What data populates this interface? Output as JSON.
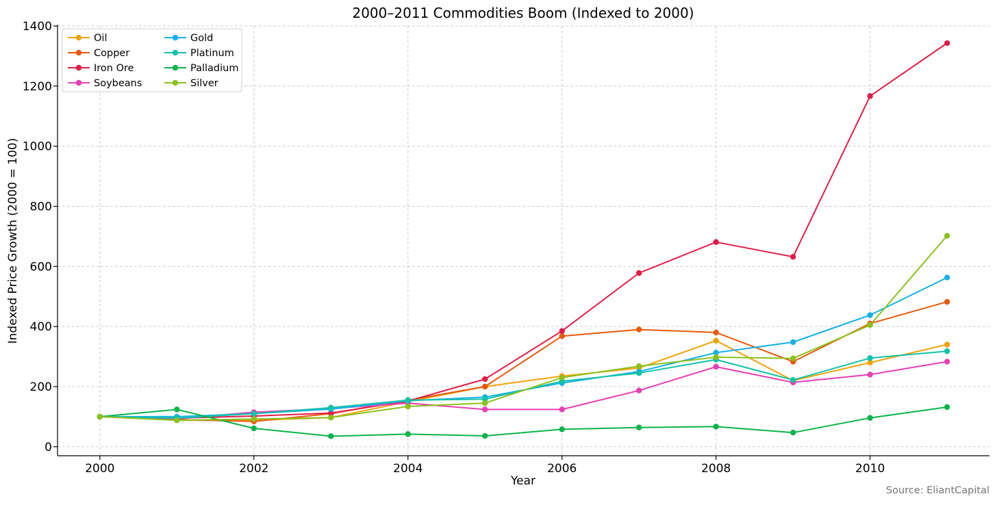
{
  "chart_data": {
    "type": "line",
    "title": "2000–2011 Commodities Boom (Indexed to 2000)",
    "xlabel": "Year",
    "ylabel": "Indexed Price Growth (2000 = 100)",
    "source": "Source: EliantCapital",
    "xlim": [
      1999.45,
      2011.55
    ],
    "ylim": [
      -30,
      1400
    ],
    "x": [
      2000,
      2001,
      2002,
      2003,
      2004,
      2005,
      2006,
      2007,
      2008,
      2009,
      2010,
      2011
    ],
    "xticks": [
      2000,
      2002,
      2004,
      2006,
      2008,
      2010
    ],
    "xtick_labels": [
      "2000",
      "2002",
      "2004",
      "2006",
      "2008",
      "2010"
    ],
    "yticks": [
      0,
      200,
      400,
      600,
      800,
      1000,
      1200,
      1400
    ],
    "ytick_labels": [
      "0",
      "200",
      "400",
      "600",
      "800",
      "1000",
      "1200",
      "1400"
    ],
    "grid": true,
    "legend_position": "top-left",
    "series": [
      {
        "name": "Oil",
        "color": "#f0a30a",
        "values": [
          100,
          88,
          88,
          97,
          150,
          200,
          235,
          262,
          353,
          220,
          280,
          340
        ]
      },
      {
        "name": "Copper",
        "color": "#e8590c",
        "values": [
          100,
          90,
          84,
          110,
          155,
          200,
          368,
          390,
          380,
          283,
          410,
          482
        ]
      },
      {
        "name": "Iron Ore",
        "color": "#e11d48",
        "values": [
          100,
          95,
          102,
          112,
          152,
          225,
          385,
          578,
          681,
          632,
          1167,
          1343
        ]
      },
      {
        "name": "Soybeans",
        "color": "#e83fb4",
        "values": [
          100,
          92,
          115,
          127,
          145,
          124,
          124,
          187,
          266,
          214,
          240,
          283
        ]
      },
      {
        "name": "Gold",
        "color": "#17b0e8",
        "values": [
          100,
          100,
          110,
          125,
          153,
          165,
          212,
          250,
          313,
          348,
          438,
          563
        ]
      },
      {
        "name": "Platinum",
        "color": "#12c2a8",
        "values": [
          100,
          95,
          110,
          130,
          155,
          158,
          218,
          245,
          290,
          222,
          295,
          318
        ]
      },
      {
        "name": "Palladium",
        "color": "#0ab44a",
        "values": [
          100,
          124,
          61,
          35,
          42,
          36,
          58,
          64,
          67,
          47,
          96,
          132
        ]
      },
      {
        "name": "Silver",
        "color": "#8cc11c",
        "values": [
          100,
          88,
          92,
          97,
          134,
          145,
          230,
          268,
          298,
          294,
          405,
          702
        ]
      }
    ]
  }
}
